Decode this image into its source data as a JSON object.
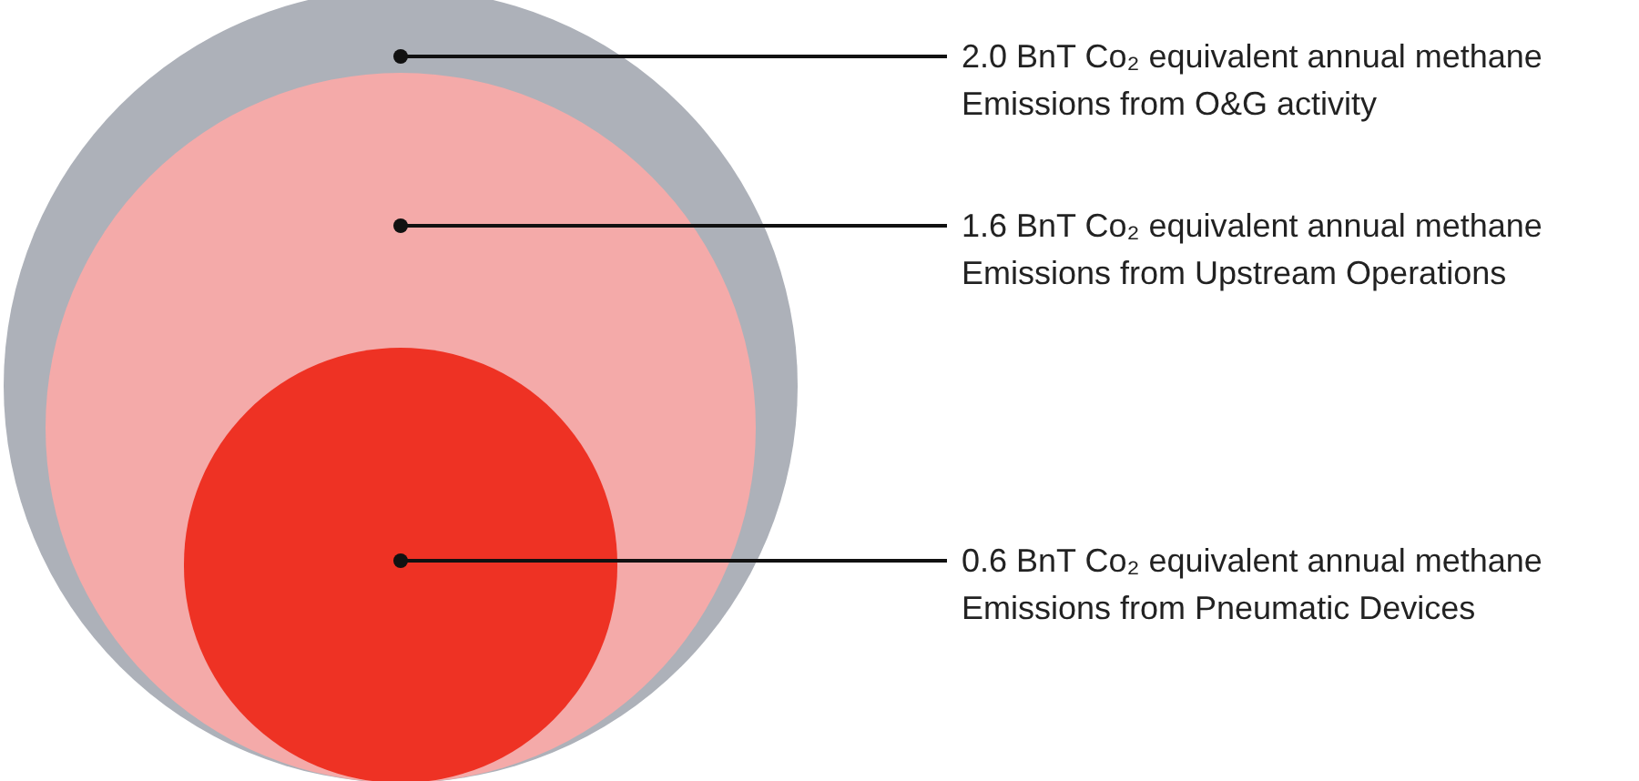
{
  "chart_data": {
    "type": "other",
    "categories": [
      "BnT Co₂ equivalent annual methane\nEmissions from O&G activity",
      "BnT Co₂ equivalent annual methane\nEmissions from Upstream Operations",
      "BnT Co₂ equivalent annual methane\nEmissions from Pneumatic Devices"
    ],
    "values": [
      2.0,
      1.6,
      0.6
    ],
    "value_labels": [
      "2.0",
      "1.6",
      "0.6"
    ],
    "colors": [
      "#adb1b9",
      "#f4aaa9",
      "#ee3224"
    ]
  }
}
